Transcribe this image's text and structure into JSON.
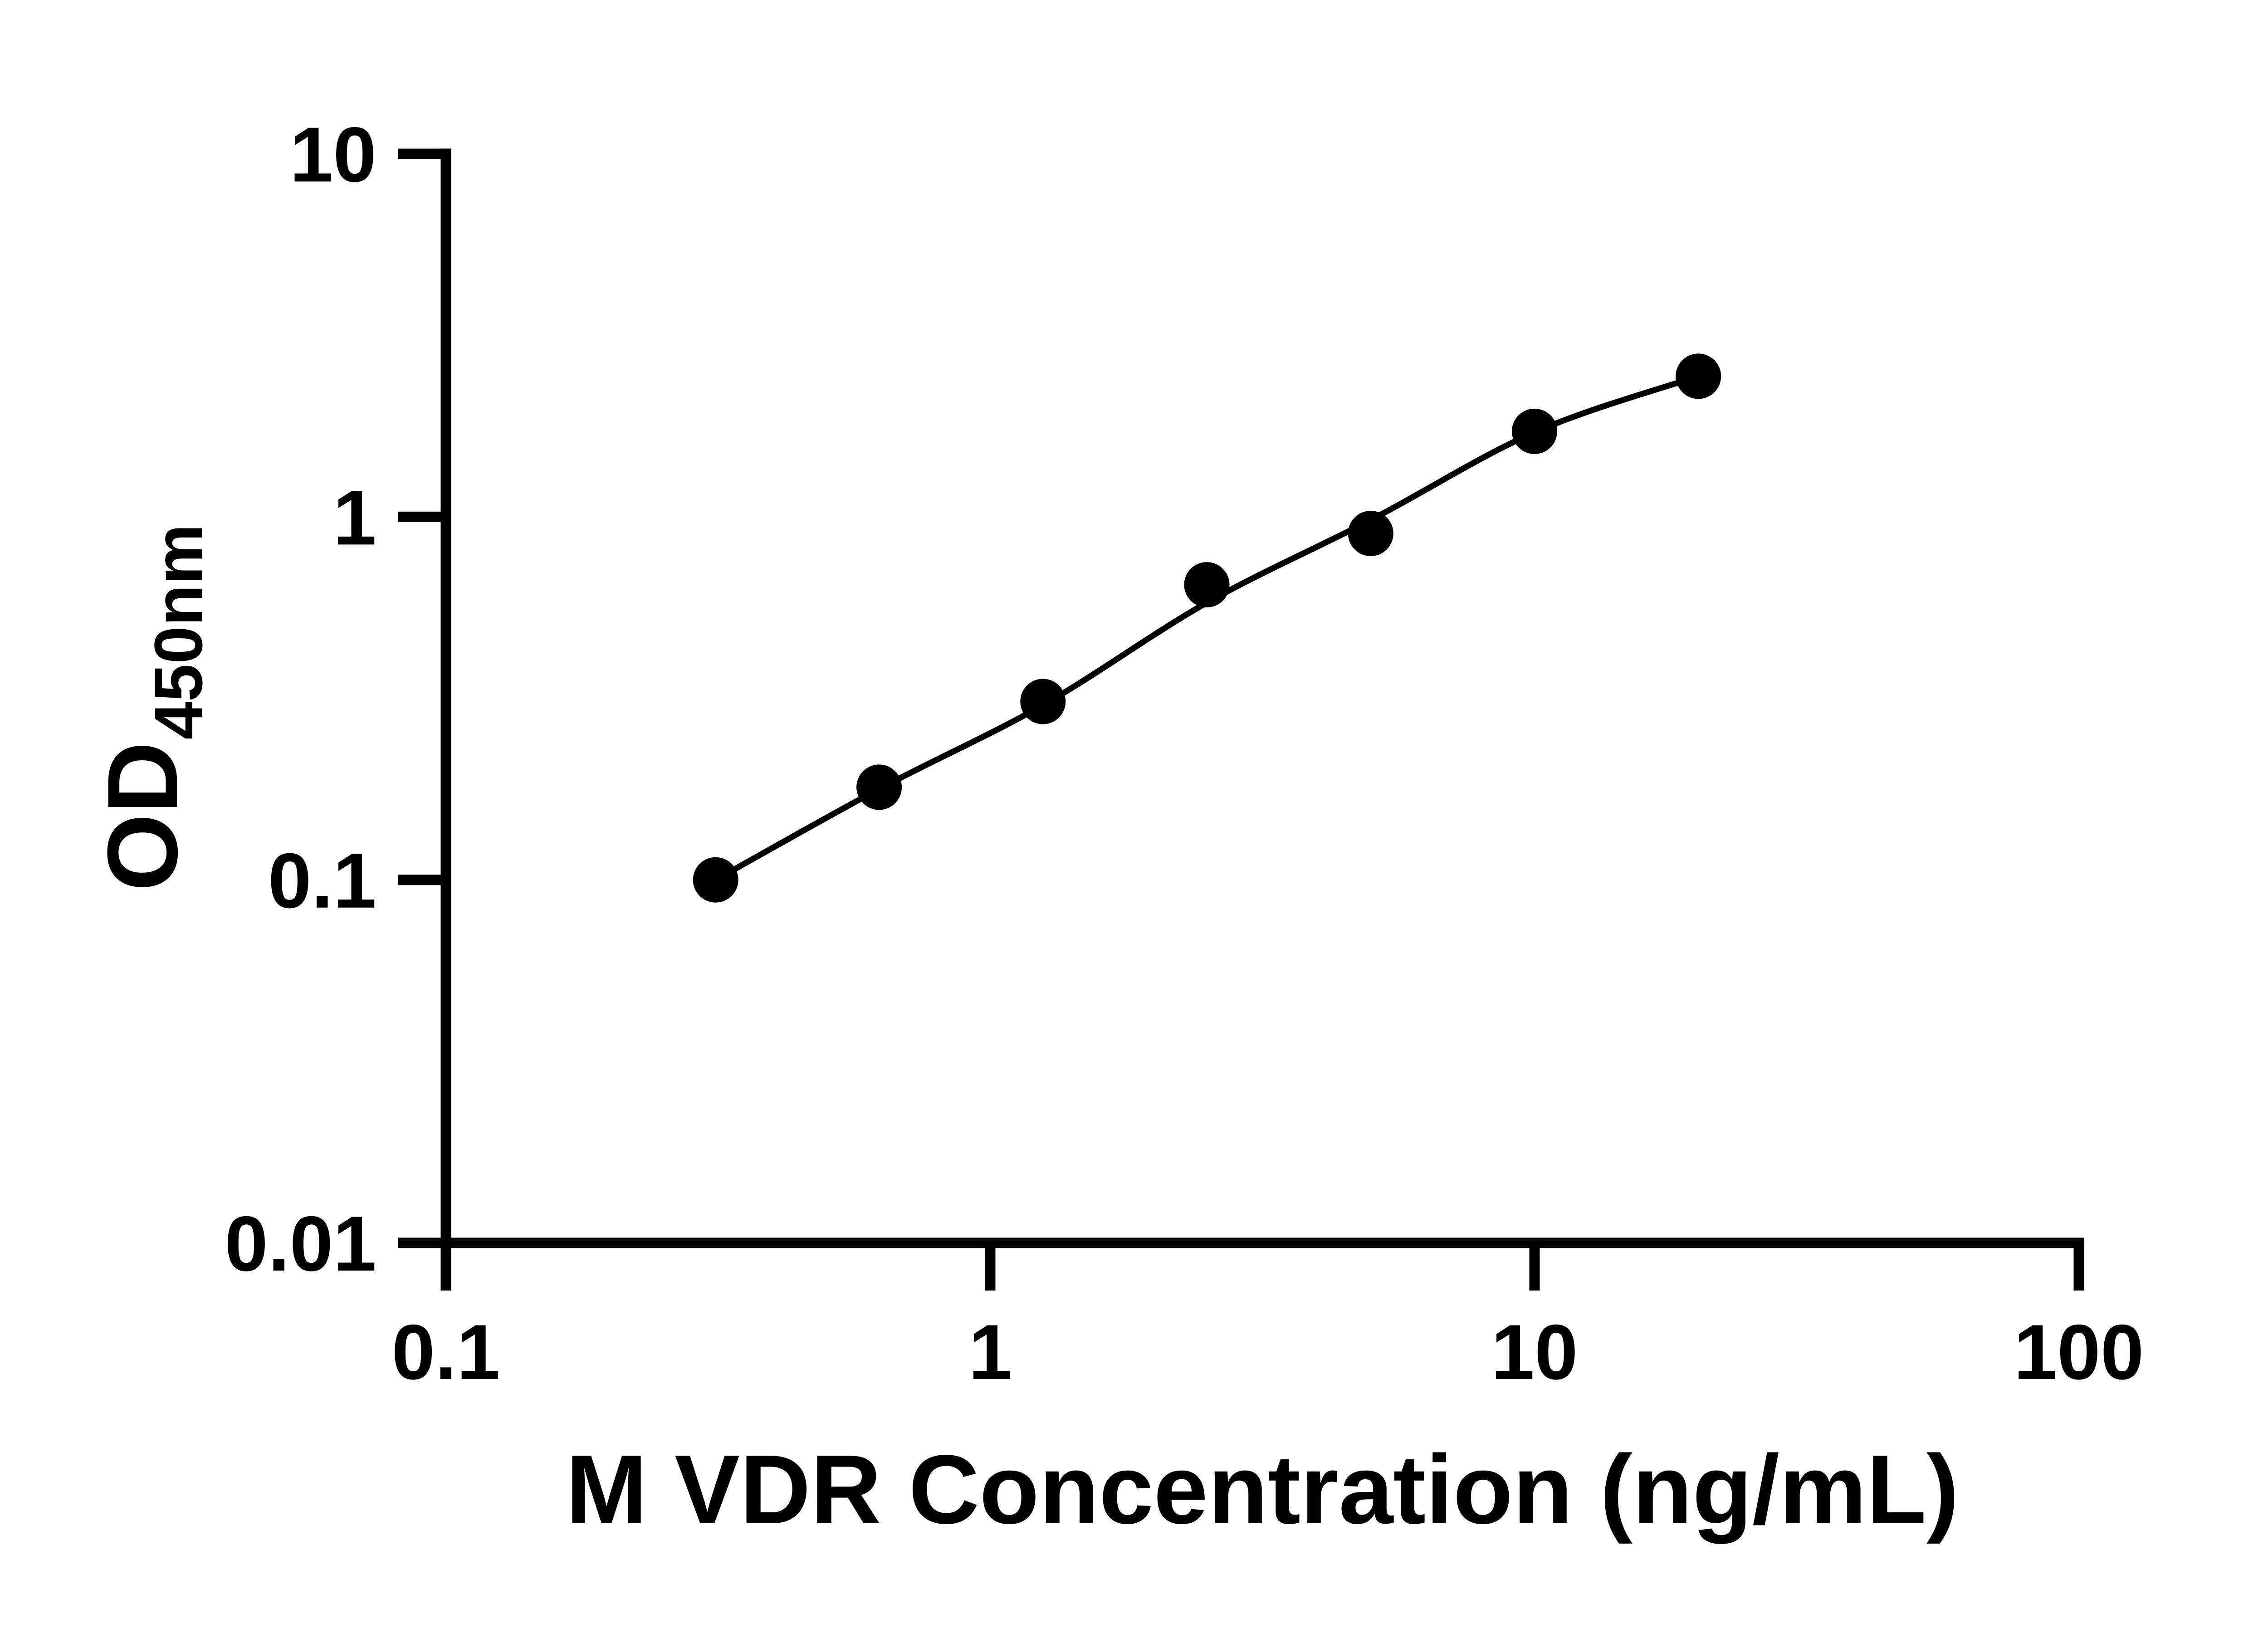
{
  "figure": {
    "background_color": "#ffffff",
    "ink_color": "#000000"
  },
  "chart_data": {
    "type": "scatter",
    "subtype": "elisa-standard-curve",
    "title": "",
    "xlabel": "M VDR Concentration (ng/mL)",
    "ylabel": "OD",
    "ylabel_subscript": "450nm",
    "x_scale": "log",
    "y_scale": "log",
    "xlim": [
      0.1,
      100
    ],
    "ylim": [
      0.01,
      10
    ],
    "grid": "off",
    "legend": "none",
    "x_ticks": [
      {
        "value": 0.1,
        "label": "0.1"
      },
      {
        "value": 1,
        "label": "1"
      },
      {
        "value": 10,
        "label": "10"
      },
      {
        "value": 100,
        "label": "100"
      }
    ],
    "y_ticks": [
      {
        "value": 10,
        "label": "10"
      },
      {
        "value": 1,
        "label": "1"
      },
      {
        "value": 0.1,
        "label": "0.1"
      },
      {
        "value": 0.01,
        "label": "0.01"
      }
    ],
    "series": [
      {
        "name": "standard-curve-points",
        "marker": "filled-circle",
        "marker_color": "#000000",
        "points": [
          {
            "x": 0.313,
            "y": 0.1
          },
          {
            "x": 0.625,
            "y": 0.18
          },
          {
            "x": 1.25,
            "y": 0.31
          },
          {
            "x": 2.5,
            "y": 0.65
          },
          {
            "x": 5,
            "y": 0.9
          },
          {
            "x": 10,
            "y": 1.72
          },
          {
            "x": 20,
            "y": 2.44
          }
        ]
      }
    ],
    "fit_curve": {
      "name": "four-parameter-logistic-fit",
      "line_color": "#000000",
      "anchors": [
        {
          "x": 0.313,
          "y": 0.1
        },
        {
          "x": 0.625,
          "y": 0.178
        },
        {
          "x": 1.25,
          "y": 0.303
        },
        {
          "x": 2.5,
          "y": 0.58
        },
        {
          "x": 5,
          "y": 0.98
        },
        {
          "x": 10,
          "y": 1.71
        },
        {
          "x": 20,
          "y": 2.44
        }
      ]
    }
  }
}
